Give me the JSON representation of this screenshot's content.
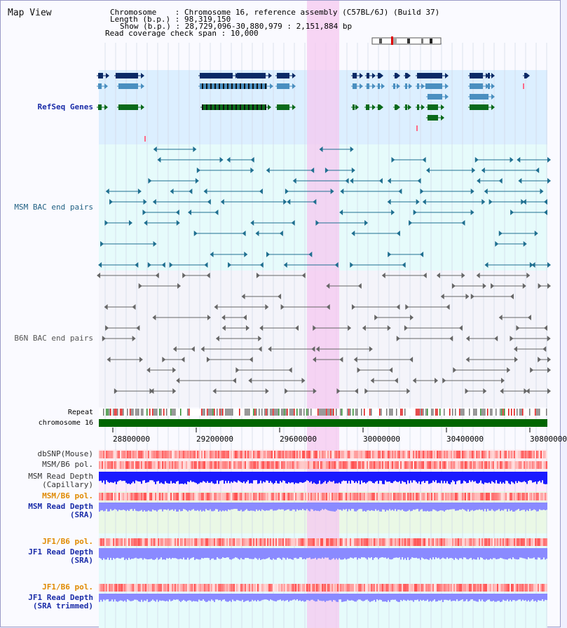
{
  "view_title": "Map View",
  "header": {
    "chromosome_label": "Chromosome",
    "chromosome_value": "Chromosome 16, reference assembly (C57BL/6J) (Build 37)",
    "length_label": "Length (b.p.)",
    "length_value": "98,319,150",
    "show_label": "Show (b.p.)",
    "show_value": "28,729,096-30,880,979 : 2,151,884 bp",
    "coverage_label": "Read coverage check span",
    "coverage_value": "10,000"
  },
  "tracks": {
    "refseq": "RefSeq Genes",
    "msm_bac": "MSM BAC end pairs",
    "b6n_bac": "B6N BAC end pairs",
    "repeat": "Repeat",
    "chromosome": "chromosome 16",
    "dbsnp": "dbSNP(Mouse)",
    "msm_b6_pol_1": "MSM/B6 pol.",
    "msm_read_depth_cap_1": "MSM Read Depth",
    "msm_read_depth_cap_2": "(Capillary)",
    "msm_b6_pol_2": "MSM/B6 pol.",
    "msm_read_depth_sra_1": "MSM Read Depth",
    "msm_read_depth_sra_2": "(SRA)",
    "jf1_b6_pol_1": "JF1/B6 pol.",
    "jf1_read_depth_sra_1": "JF1 Read Depth",
    "jf1_read_depth_sra_2": "(SRA)",
    "jf1_b6_pol_2": "JF1/B6 pol.",
    "jf1_read_depth_trim_1": "JF1 Read Depth",
    "jf1_read_depth_trim_2": "(SRA trimmed)"
  },
  "axis_ticks": [
    "28800000",
    "29200000",
    "29600000",
    "30000000",
    "30400000",
    "30800000"
  ],
  "colors": {
    "refseq_dark": "#0a2a66",
    "refseq_mid": "#4a8fc0",
    "refseq_green": "#0a6a1a",
    "bac_msm": "#1f6f90",
    "bac_b6n": "#666666",
    "highlight": "#f6c8f0",
    "chromosome_bar": "#006600",
    "depth_blue": "#1a1aff",
    "depth_light": "#8a8aff"
  }
}
